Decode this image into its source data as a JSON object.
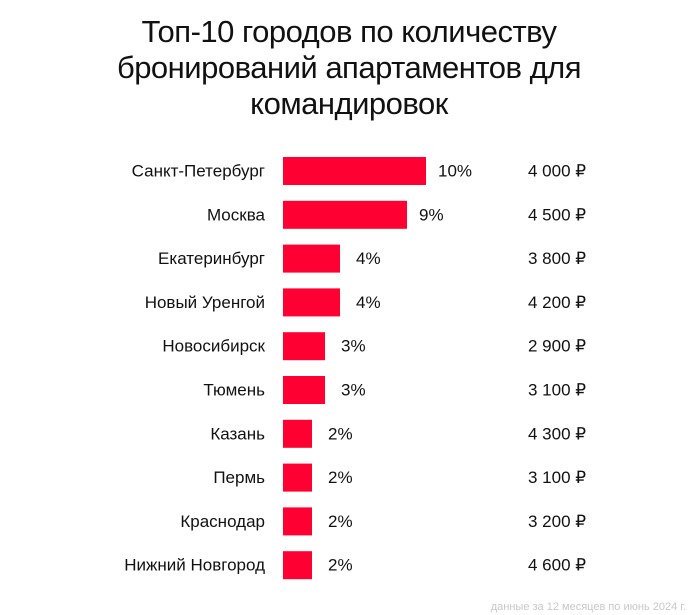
{
  "title_lines": [
    "Топ-10  городов по количеству",
    "бронирований апартаментов для",
    "командировок"
  ],
  "footnote": "данные за 12 месяцев по июнь 2024 г.",
  "colors": {
    "bar": "#ff0033",
    "text": "#111111"
  },
  "chart_data": {
    "type": "bar",
    "orientation": "horizontal",
    "title": "Топ-10  городов по количеству бронирований апартаментов для командировок",
    "categories": [
      "Санкт-Петербург",
      "Москва",
      "Екатеринбург",
      "Новый Уренгой",
      "Новосибирск",
      "Тюмень",
      "Казань",
      "Пермь",
      "Краснодар",
      "Нижний Новгород"
    ],
    "values": [
      10,
      9,
      4,
      4,
      3,
      3,
      2,
      2,
      2,
      2
    ],
    "bar_values": [
      10.5,
      9.1,
      4.2,
      4.2,
      3.1,
      3.1,
      2.1,
      2.1,
      2.1,
      2.1
    ],
    "value_labels": [
      "10%",
      "9%",
      "4%",
      "4%",
      "3%",
      "3%",
      "2%",
      "2%",
      "2%",
      "2%"
    ],
    "prices": [
      "4 000 ₽",
      "4 500 ₽",
      "3 800 ₽",
      "4 200 ₽",
      "2 900 ₽",
      "3 100 ₽",
      "4 300 ₽",
      "3 100 ₽",
      "3 200 ₽",
      "4 600 ₽"
    ],
    "xlim": [
      0,
      10.5
    ],
    "grid": false,
    "legend": "none"
  }
}
